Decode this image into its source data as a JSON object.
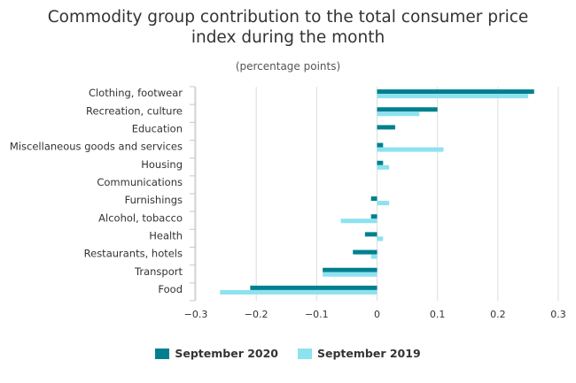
{
  "chart_data": {
    "type": "bar",
    "orientation": "horizontal",
    "title": "Commodity group contribution to the total consumer price index during the month",
    "title_lines": [
      "Commodity group contribution to the total consumer price",
      "index during the month"
    ],
    "subtitle": "(percentage points)",
    "categories": [
      "Clothing, footwear",
      "Recreation, culture",
      "Education",
      "Miscellaneous goods and services",
      "Housing",
      "Communications",
      "Furnishings",
      "Alcohol, tobacco",
      "Health",
      "Restaurants, hotels",
      "Transport",
      "Food"
    ],
    "series": [
      {
        "name": "September 2020",
        "color": "#00808f",
        "values": [
          0.26,
          0.1,
          0.03,
          0.01,
          0.01,
          0.0,
          -0.01,
          -0.01,
          -0.02,
          -0.04,
          -0.09,
          -0.21
        ]
      },
      {
        "name": "September 2019",
        "color": "#8de2ef",
        "values": [
          0.25,
          0.07,
          0.0,
          0.11,
          0.02,
          0.0,
          0.02,
          -0.06,
          0.01,
          -0.01,
          -0.09,
          -0.26
        ]
      }
    ],
    "xlim": [
      -0.3,
      0.3
    ],
    "xticks": [
      "−0.3",
      "−0.2",
      "−0.1",
      "0",
      "0.1",
      "0.2",
      "0.3"
    ],
    "grid": true,
    "legend_position": "bottom"
  }
}
